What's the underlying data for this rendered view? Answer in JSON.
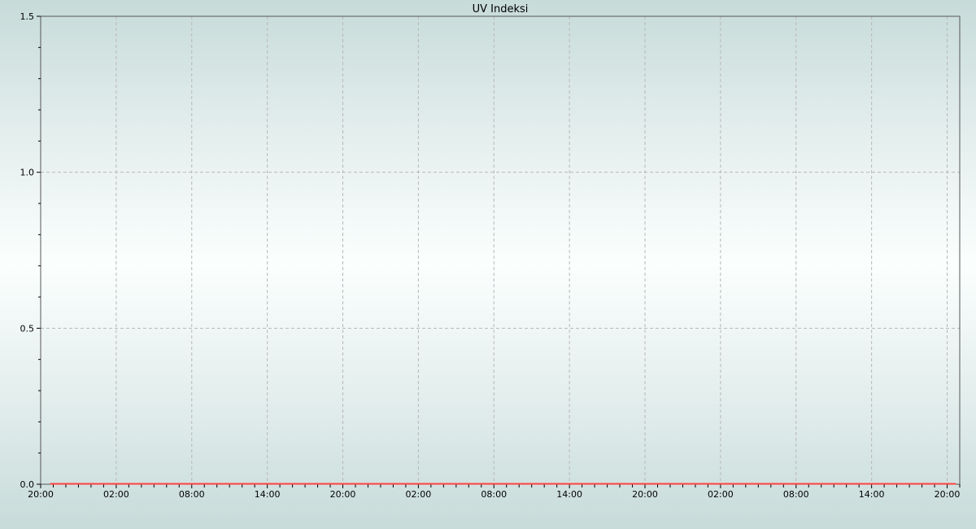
{
  "chart_data": {
    "type": "line",
    "title": "UV Indeksi",
    "xlabel": "",
    "ylabel": "",
    "x_tick_labels": [
      "20:00",
      "02:00",
      "08:00",
      "14:00",
      "20:00",
      "02:00",
      "08:00",
      "14:00",
      "20:00",
      "02:00",
      "08:00",
      "14:00",
      "20:00"
    ],
    "x_range_hours": [
      0,
      73
    ],
    "ylim": [
      0,
      1.5
    ],
    "y_tick_labels": [
      "0.0",
      "0.5",
      "1.0",
      "1.5"
    ],
    "y_ticks": [
      0,
      0.5,
      1.0,
      1.5
    ],
    "grid": true,
    "series": [
      {
        "color": "#ff4040",
        "x_hours": [
          0.75,
          72.7
        ],
        "values": [
          0,
          0
        ]
      }
    ]
  }
}
